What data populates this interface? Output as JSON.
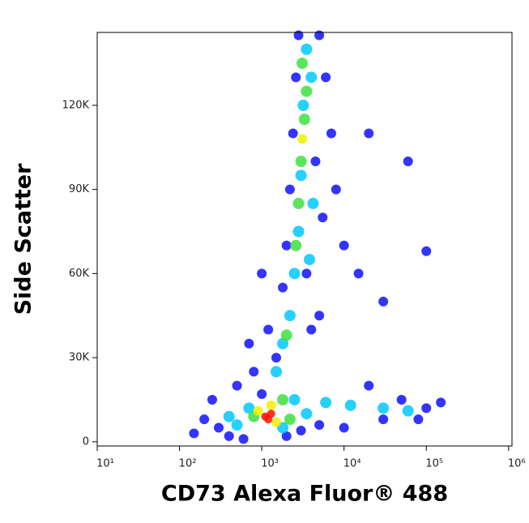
{
  "chart_data": {
    "type": "scatter",
    "x_label": "CD73 Alexa Fluor® 488",
    "y_label": "Side Scatter",
    "xscale": "log",
    "xlim": [
      10,
      1100000
    ],
    "ylim": [
      -1500,
      146000
    ],
    "xticks": [
      {
        "value": 10,
        "label": "10¹"
      },
      {
        "value": 100,
        "label": "10²"
      },
      {
        "value": 1000,
        "label": "10³"
      },
      {
        "value": 10000,
        "label": "10⁴"
      },
      {
        "value": 100000,
        "label": "10⁵"
      },
      {
        "value": 1000000,
        "label": "10⁶"
      }
    ],
    "yticks": [
      0,
      {
        "value": 30000,
        "label": "30K"
      },
      {
        "value": 60000,
        "label": "60K"
      },
      {
        "value": 90000,
        "label": "90K"
      },
      {
        "value": 120000,
        "label": "120K"
      }
    ],
    "series": [
      {
        "color": "#1010ff",
        "x": [
          300,
          200,
          150,
          400,
          600,
          2000,
          3000,
          5000,
          250,
          500,
          800,
          1500,
          1200,
          1800,
          2000,
          2200,
          2400,
          2600,
          2800,
          5000,
          6000,
          7000,
          8000,
          10000,
          15000,
          30000,
          5000,
          20000,
          50000,
          100000,
          150000,
          80000,
          30000,
          10000,
          700,
          1000,
          4500,
          5500,
          3500,
          4000,
          1000,
          60000,
          100000,
          20000
        ],
        "values": [
          5000,
          8000,
          3000,
          2000,
          1000,
          2000,
          4000,
          6000,
          15000,
          20000,
          25000,
          30000,
          40000,
          55000,
          70000,
          90000,
          110000,
          130000,
          145000,
          145000,
          130000,
          110000,
          90000,
          70000,
          60000,
          50000,
          45000,
          20000,
          15000,
          12000,
          14000,
          8000,
          8000,
          5000,
          35000,
          60000,
          100000,
          80000,
          60000,
          40000,
          17000,
          100000,
          68000,
          110000
        ]
      },
      {
        "color": "#00c8ff",
        "x": [
          500,
          700,
          1800,
          2500,
          1500,
          1800,
          2200,
          2500,
          2800,
          3000,
          3200,
          3500,
          4000,
          4200,
          3800,
          6000,
          12000,
          30000,
          60000,
          400,
          3500
        ],
        "values": [
          6000,
          12000,
          5000,
          15000,
          25000,
          35000,
          45000,
          60000,
          75000,
          95000,
          120000,
          140000,
          130000,
          85000,
          65000,
          14000,
          13000,
          12000,
          11000,
          9000,
          10000
        ]
      },
      {
        "color": "#40e040",
        "x": [
          2800,
          3000,
          3300,
          3500,
          3100,
          2600,
          2000,
          800,
          1800,
          2200
        ],
        "values": [
          85000,
          100000,
          115000,
          125000,
          135000,
          70000,
          38000,
          9000,
          15000,
          8000
        ]
      },
      {
        "color": "#f0f000",
        "x": [
          3100,
          900,
          1500,
          1300
        ],
        "values": [
          108000,
          11000,
          7000,
          13000
        ]
      },
      {
        "color": "#ff1000",
        "x": [
          1100,
          1300,
          1200
        ],
        "values": [
          9000,
          10000,
          8000
        ]
      }
    ]
  }
}
